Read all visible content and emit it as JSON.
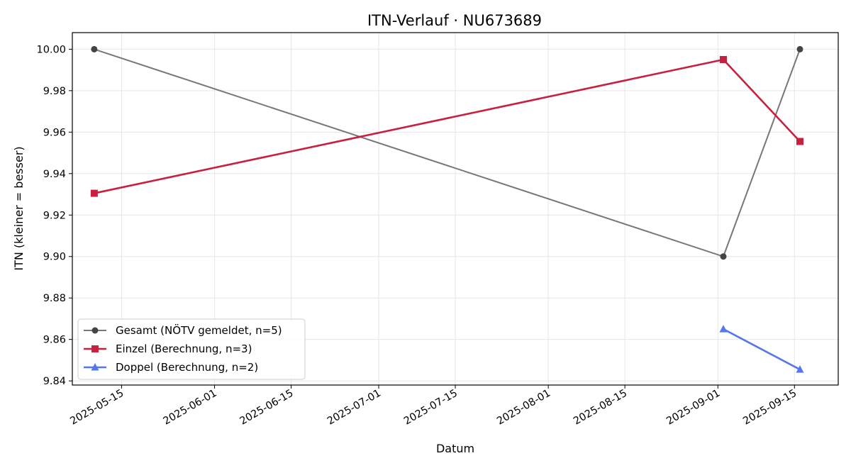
{
  "chart_data": {
    "type": "line",
    "title": "ITN-Verlauf · NU673689",
    "xlabel": "Datum",
    "ylabel": "ITN  (kleiner = besser)",
    "x_ticks": [
      "2025-05-15",
      "2025-06-01",
      "2025-06-15",
      "2025-07-01",
      "2025-07-15",
      "2025-08-01",
      "2025-08-15",
      "2025-09-01",
      "2025-09-15"
    ],
    "y_ticks": [
      "9.84",
      "9.86",
      "9.88",
      "9.90",
      "9.92",
      "9.94",
      "9.96",
      "9.98",
      "10.00"
    ],
    "xlim": [
      "2025-05-06",
      "2025-09-23"
    ],
    "ylim": [
      9.838,
      10.008
    ],
    "grid": true,
    "legend_position": "lower-left",
    "series": [
      {
        "name": "Gesamt (NÖTV gemeldet, n=5)",
        "marker": "circle",
        "color": "#777777",
        "marker_color": "#444444",
        "points": [
          {
            "x": "2025-05-10",
            "y": 10.0
          },
          {
            "x": "2025-09-02",
            "y": 9.9
          },
          {
            "x": "2025-09-16",
            "y": 10.0
          }
        ]
      },
      {
        "name": "Einzel (Berechnung, n=3)",
        "marker": "square",
        "color": "#c8203f",
        "marker_color": "#c8203f",
        "points": [
          {
            "x": "2025-05-10",
            "y": 9.9305
          },
          {
            "x": "2025-09-02",
            "y": 9.995
          },
          {
            "x": "2025-09-16",
            "y": 9.9555
          }
        ]
      },
      {
        "name": "Doppel (Berechnung, n=2)",
        "marker": "triangle",
        "color": "#5577ee",
        "marker_color": "#5577ee",
        "points": [
          {
            "x": "2025-09-02",
            "y": 9.865
          },
          {
            "x": "2025-09-16",
            "y": 9.8455
          }
        ]
      }
    ]
  }
}
